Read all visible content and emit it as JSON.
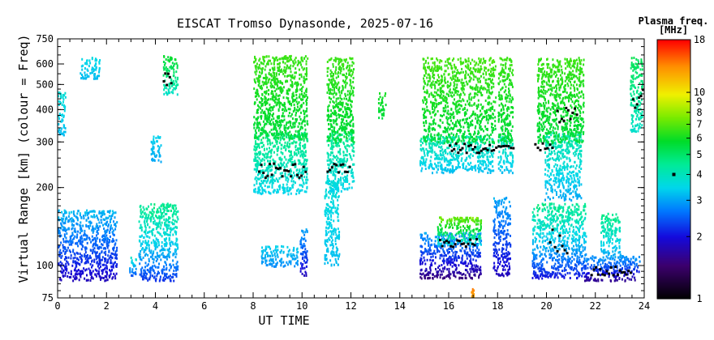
{
  "chart_data": {
    "type": "scatter",
    "title": "EISCAT Tromso Dynasonde, 2025-07-16",
    "xlabel": "UT TIME",
    "ylabel": "Virtual Range [km] (colour = Freq)",
    "y_scale": "log",
    "xlim": [
      0,
      24
    ],
    "ylim": [
      75,
      750
    ],
    "xticks": [
      0,
      2,
      4,
      6,
      8,
      10,
      12,
      14,
      16,
      18,
      20,
      22,
      24
    ],
    "yticks": [
      75,
      100,
      200,
      300,
      400,
      500,
      600,
      750
    ],
    "colorbar": {
      "title_line1": "Plasma freq.",
      "title_line2": "[MHz]",
      "scale": "log",
      "range": [
        1,
        18
      ],
      "ticks": [
        1,
        2,
        3,
        4,
        5,
        6,
        7,
        8,
        9,
        10,
        18
      ],
      "marker_value": 4
    },
    "echo_regions": [
      {
        "t": [
          0.0,
          2.4
        ],
        "h": [
          88,
          165
        ],
        "f": [
          1.8,
          3.4
        ]
      },
      {
        "t": [
          0.0,
          0.3
        ],
        "h": [
          320,
          470
        ],
        "f": [
          3.2,
          3.8
        ]
      },
      {
        "t": [
          0.9,
          1.7
        ],
        "h": [
          530,
          640
        ],
        "f": [
          3.2,
          3.6
        ]
      },
      {
        "t": [
          2.9,
          3.2
        ],
        "h": [
          92,
          110
        ],
        "f": [
          2.4,
          4.2
        ]
      },
      {
        "t": [
          3.3,
          4.9
        ],
        "h": [
          88,
          175
        ],
        "f": [
          2.2,
          5.0
        ]
      },
      {
        "t": [
          3.8,
          4.2
        ],
        "h": [
          250,
          320
        ],
        "f": [
          3.0,
          3.5
        ]
      },
      {
        "t": [
          4.3,
          4.9
        ],
        "h": [
          460,
          650
        ],
        "f": [
          3.8,
          6.2
        ]
      },
      {
        "t": [
          8.0,
          10.2
        ],
        "h": [
          190,
          330
        ],
        "f": [
          3.4,
          5.0
        ]
      },
      {
        "t": [
          8.0,
          10.2
        ],
        "h": [
          310,
          650
        ],
        "f": [
          5.5,
          6.8
        ]
      },
      {
        "t": [
          8.3,
          9.8
        ],
        "h": [
          100,
          120
        ],
        "f": [
          2.8,
          3.5
        ]
      },
      {
        "t": [
          9.9,
          10.2
        ],
        "h": [
          92,
          140
        ],
        "f": [
          1.8,
          3.2
        ]
      },
      {
        "t": [
          10.9,
          11.5
        ],
        "h": [
          100,
          215
        ],
        "f": [
          3.2,
          3.8
        ]
      },
      {
        "t": [
          11.0,
          12.1
        ],
        "h": [
          195,
          330
        ],
        "f": [
          3.4,
          4.8
        ]
      },
      {
        "t": [
          11.0,
          12.1
        ],
        "h": [
          300,
          640
        ],
        "f": [
          5.5,
          6.8
        ]
      },
      {
        "t": [
          13.1,
          13.4
        ],
        "h": [
          370,
          470
        ],
        "f": [
          5.5,
          6.2
        ]
      },
      {
        "t": [
          14.8,
          17.3
        ],
        "h": [
          90,
          135
        ],
        "f": [
          1.5,
          3.2
        ]
      },
      {
        "t": [
          15.5,
          17.3
        ],
        "h": [
          120,
          155
        ],
        "f": [
          3.2,
          8.0
        ]
      },
      {
        "t": [
          14.8,
          17.8
        ],
        "h": [
          230,
          320
        ],
        "f": [
          3.2,
          4.5
        ]
      },
      {
        "t": [
          14.9,
          17.9
        ],
        "h": [
          300,
          640
        ],
        "f": [
          5.5,
          7.0
        ]
      },
      {
        "t": [
          16.9,
          17.0
        ],
        "h": [
          75,
          82
        ],
        "f": [
          12.0,
          14.0
        ]
      },
      {
        "t": [
          17.8,
          18.5
        ],
        "h": [
          92,
          185
        ],
        "f": [
          1.8,
          3.2
        ]
      },
      {
        "t": [
          18.0,
          18.6
        ],
        "h": [
          230,
          320
        ],
        "f": [
          3.2,
          4.4
        ]
      },
      {
        "t": [
          18.0,
          18.6
        ],
        "h": [
          300,
          640
        ],
        "f": [
          5.5,
          6.8
        ]
      },
      {
        "t": [
          19.4,
          21.6
        ],
        "h": [
          90,
          175
        ],
        "f": [
          2.0,
          5.0
        ]
      },
      {
        "t": [
          19.9,
          21.4
        ],
        "h": [
          180,
          330
        ],
        "f": [
          3.0,
          4.5
        ]
      },
      {
        "t": [
          19.6,
          21.5
        ],
        "h": [
          300,
          640
        ],
        "f": [
          5.5,
          6.8
        ]
      },
      {
        "t": [
          21.5,
          23.8
        ],
        "h": [
          88,
          110
        ],
        "f": [
          1.6,
          3.2
        ]
      },
      {
        "t": [
          22.2,
          23.0
        ],
        "h": [
          110,
          160
        ],
        "f": [
          3.0,
          5.0
        ]
      },
      {
        "t": [
          23.4,
          23.9
        ],
        "h": [
          330,
          640
        ],
        "f": [
          3.8,
          5.5
        ]
      }
    ],
    "dominant_traces": [
      {
        "t": [
          8.2,
          10.1
        ],
        "h": [
          220,
          250
        ]
      },
      {
        "t": [
          11.0,
          11.9
        ],
        "h": [
          230,
          250
        ]
      },
      {
        "t": [
          15.6,
          17.1
        ],
        "h": [
          118,
          128
        ]
      },
      {
        "t": [
          16.0,
          17.8
        ],
        "h": [
          275,
          300
        ]
      },
      {
        "t": [
          17.9,
          18.6
        ],
        "h": [
          285,
          300
        ]
      },
      {
        "t": [
          19.5,
          20.2
        ],
        "h": [
          280,
          300
        ]
      },
      {
        "t": [
          20.4,
          21.2
        ],
        "h": [
          360,
          420
        ]
      },
      {
        "t": [
          20.1,
          20.8
        ],
        "h": [
          110,
          140
        ]
      },
      {
        "t": [
          21.8,
          23.4
        ],
        "h": [
          92,
          100
        ]
      },
      {
        "t": [
          23.5,
          23.9
        ],
        "h": [
          380,
          520
        ]
      },
      {
        "t": [
          4.3,
          4.6
        ],
        "h": [
          500,
          560
        ]
      }
    ]
  }
}
